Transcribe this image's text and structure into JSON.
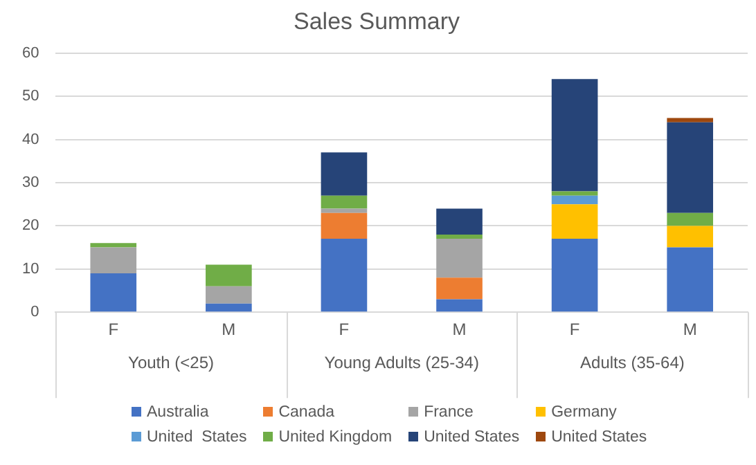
{
  "chart_data": {
    "type": "bar",
    "title": "Sales Summary",
    "stacked": true,
    "categories": [
      "F",
      "M",
      "F",
      "M",
      "F",
      "M"
    ],
    "annotations": [
      "Youth (<25)",
      "Young Adults (25-34)",
      "Adults (35-64)"
    ],
    "series": [
      {
        "name": "Australia",
        "color": "#4472c4",
        "values": [
          9,
          2,
          17,
          3,
          17,
          15
        ]
      },
      {
        "name": "Canada",
        "color": "#ed7d31",
        "values": [
          null,
          null,
          6,
          5,
          null,
          null
        ]
      },
      {
        "name": "France",
        "color": "#a5a5a5",
        "values": [
          6,
          4,
          1,
          9,
          null,
          null
        ]
      },
      {
        "name": "Germany",
        "color": "#ffc000",
        "values": [
          null,
          null,
          null,
          null,
          8,
          5
        ]
      },
      {
        "name": "United  States",
        "color": "#5b9bd5",
        "values": [
          null,
          null,
          null,
          null,
          2,
          null
        ]
      },
      {
        "name": "United Kingdom",
        "color": "#70ad47",
        "values": [
          1,
          5,
          3,
          1,
          1,
          3
        ]
      },
      {
        "name": "United States",
        "color": "#264478",
        "values": [
          null,
          null,
          10,
          6,
          26,
          21
        ]
      },
      {
        "name": "United States",
        "color": "#9e480e",
        "values": [
          null,
          null,
          null,
          null,
          null,
          1
        ]
      }
    ],
    "ylim": [
      0,
      60
    ],
    "yticks": [
      0,
      10,
      20,
      30,
      40,
      50,
      60
    ],
    "grid": "y",
    "legend": "bottom"
  }
}
